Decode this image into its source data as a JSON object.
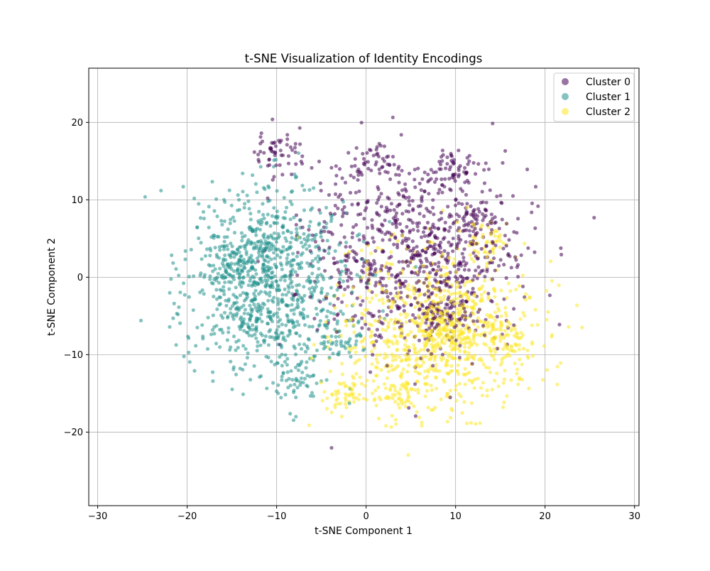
{
  "chart_data": {
    "type": "scatter",
    "title": "t-SNE Visualization of Identity Encodings",
    "xlabel": "t-SNE Component 1",
    "ylabel": "t-SNE Component 2",
    "xlim": [
      -31,
      30.5
    ],
    "ylim": [
      -29.5,
      27
    ],
    "xticks": [
      -30,
      -20,
      -10,
      0,
      10,
      20,
      30
    ],
    "yticks": [
      -20,
      -10,
      0,
      10,
      20
    ],
    "grid": true,
    "legend_position": "top-right",
    "series": [
      {
        "name": "Cluster 0",
        "color": "#440154",
        "alpha": 0.55,
        "center": [
          6,
          3
        ],
        "spread": [
          11,
          11
        ],
        "dense_blobs": [
          [
            12,
            7.5
          ],
          [
            9,
            -5
          ],
          [
            10,
            13.5
          ],
          [
            1,
            15
          ],
          [
            -10,
            16
          ]
        ]
      },
      {
        "name": "Cluster 1",
        "color": "#21918c",
        "alpha": 0.55,
        "center": [
          -11,
          0
        ],
        "spread": [
          8.5,
          10
        ],
        "dense_blobs": [
          [
            -15,
            2
          ],
          [
            -11,
            6
          ],
          [
            -8,
            -13
          ],
          [
            -13,
            -6
          ],
          [
            -3,
            -8
          ]
        ]
      },
      {
        "name": "Cluster 2",
        "color": "#fde725",
        "alpha": 0.55,
        "center": [
          8,
          -7
        ],
        "spread": [
          9.5,
          9
        ],
        "dense_blobs": [
          [
            13,
            5
          ],
          [
            4,
            -15.5
          ],
          [
            9,
            -7
          ],
          [
            16,
            -8
          ],
          [
            -2,
            -15
          ]
        ]
      }
    ]
  }
}
